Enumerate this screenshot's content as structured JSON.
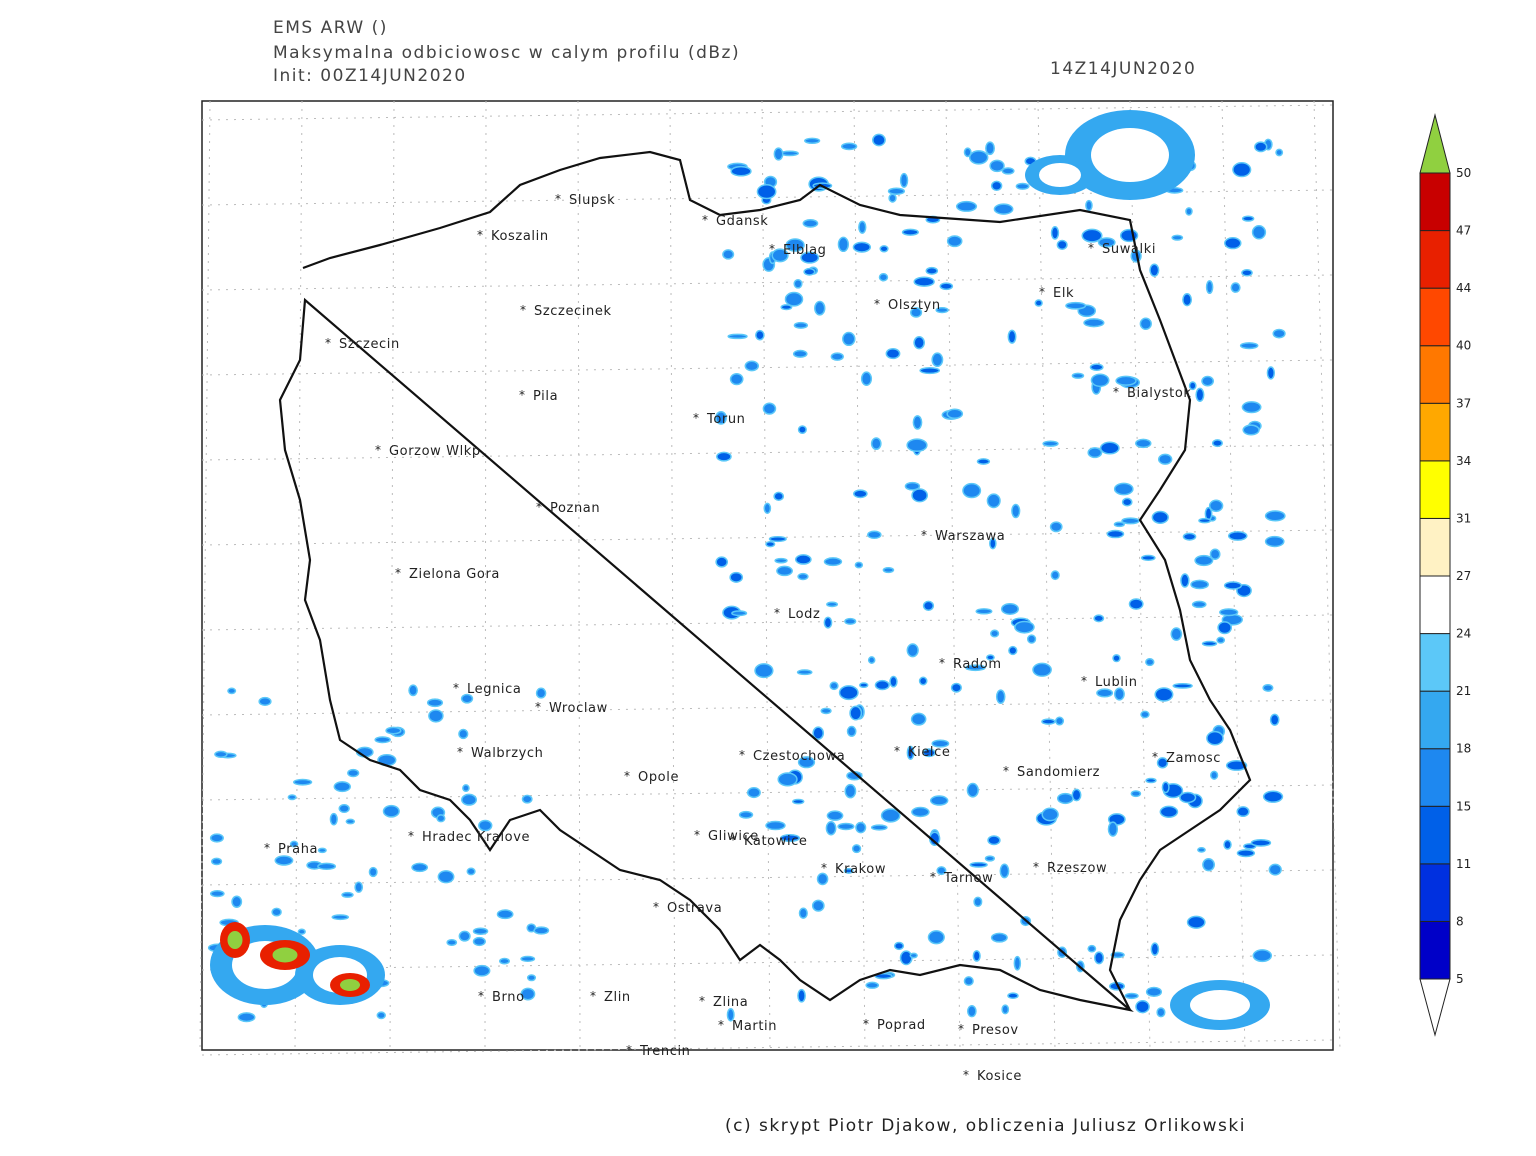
{
  "header": {
    "model": "EMS ARW ()",
    "title": "Maksymalna odbiciowosc w calym profilu (dBz)",
    "init": "Init: 00Z14JUN2020",
    "valid": "14Z14JUN2020"
  },
  "cities": [
    "Slupsk",
    "Koszalin",
    "Gdansk",
    "Elblag",
    "Suwalki",
    "Elk",
    "Olsztyn",
    "Szczecinek",
    "Szczecin",
    "Bialystok",
    "Pila",
    "Torun",
    "Gorzow Wlkp",
    "Poznan",
    "Warszawa",
    "Zielona Gora",
    "Lodz",
    "Radom",
    "Lublin",
    "Legnica",
    "Wroclaw",
    "Walbrzych",
    "Czestochowa",
    "Kielce",
    "Zamosc",
    "Opole",
    "Sandomierz",
    "Gliwice",
    "Katowice",
    "Hradec Kralove",
    "Praha",
    "Krakow",
    "Rzeszow",
    "Tarnow",
    "Ostrava",
    "Brno",
    "Zlin",
    "Zlina",
    "Martin",
    "Poprad",
    "Presov",
    "Trencin",
    "Kosice"
  ],
  "colorbar": {
    "levels": [
      5,
      8,
      11,
      15,
      18,
      21,
      24,
      27,
      31,
      34,
      37,
      40,
      44,
      47,
      50
    ],
    "colors": [
      "#0000c8",
      "#0030e0",
      "#0060e8",
      "#1e88f0",
      "#34a8f0",
      "#5cc8f8",
      "#ffffff",
      "#fff2c4",
      "#ffff00",
      "#ffa800",
      "#ff7800",
      "#ff4800",
      "#e82000",
      "#c80000"
    ],
    "under_color": "#ffffff",
    "over_color": "#90d040"
  },
  "credit": "(c) skrypt Piotr Djakow, obliczenia Juliusz Orlikowski"
}
